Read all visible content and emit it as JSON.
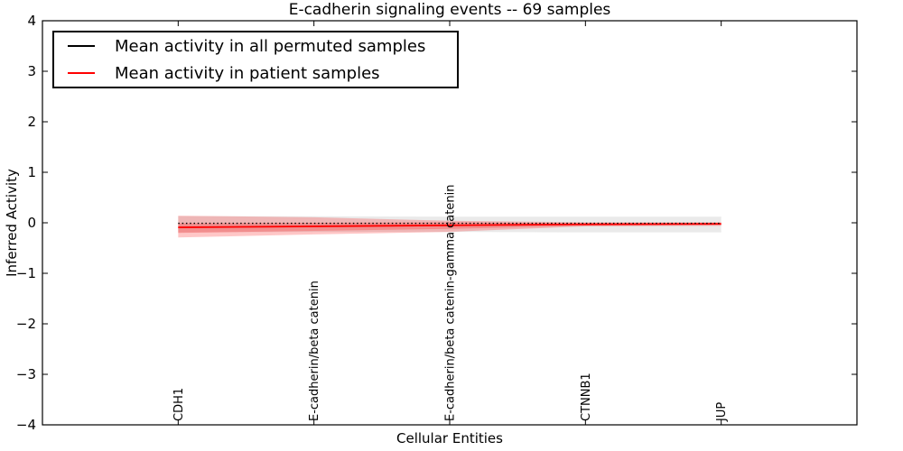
{
  "figure": {
    "title": "E-cadherin signaling events -- 69 samples",
    "xlabel": "Cellular Entities",
    "ylabel": "Inferred Activity"
  },
  "legend": {
    "items": [
      {
        "label": "Mean activity in all permuted samples",
        "color": "#000000"
      },
      {
        "label": "Mean activity in patient samples",
        "color": "#ff0000"
      }
    ]
  },
  "chart_data": {
    "type": "line",
    "title": "E-cadherin signaling events -- 69 samples",
    "xlabel": "Cellular Entities",
    "ylabel": "Inferred Activity",
    "ylim": [
      -4,
      4
    ],
    "yticks": {
      "values": [
        4,
        3,
        2,
        1,
        0,
        -1,
        -2,
        -3,
        -4
      ],
      "labels": [
        "4",
        "3",
        "2",
        "1",
        "0",
        "−1",
        "−2",
        "−3",
        "−4"
      ]
    },
    "categories": [
      "CDH1",
      "E-cadherin/beta catenin",
      "E-cadherin/beta catenin-gamma catenin",
      "CTNNB1",
      "JUP"
    ],
    "grid": false,
    "legend_position": "upper left",
    "series": [
      {
        "name": "Mean activity in all permuted samples",
        "color": "#000000",
        "line_style": "dotted",
        "values": [
          -0.01,
          -0.01,
          -0.01,
          -0.01,
          -0.01
        ],
        "bands": [
          {
            "upper": [
              0.13,
              0.13,
              0.12,
              0.12,
              0.12
            ],
            "lower": [
              -0.19,
              -0.18,
              -0.18,
              -0.19,
              -0.19
            ],
            "fill": "#888888",
            "opacity": 0.18
          }
        ]
      },
      {
        "name": "Mean activity in patient samples",
        "color": "#ff0000",
        "line_style": "solid",
        "values": [
          -0.09,
          -0.07,
          -0.05,
          -0.03,
          -0.02
        ],
        "bands": [
          {
            "upper": [
              0.14,
              0.11,
              0.04,
              0.01,
              0.01
            ],
            "lower": [
              -0.29,
              -0.23,
              -0.18,
              -0.07,
              -0.06
            ],
            "fill": "#ff0000",
            "opacity": 0.22
          },
          {
            "upper": [
              -0.01,
              0.0,
              0.01,
              -0.01,
              -0.01
            ],
            "lower": [
              -0.2,
              -0.16,
              -0.12,
              -0.06,
              -0.05
            ],
            "fill": "#ff0000",
            "opacity": 0.22
          }
        ]
      }
    ]
  }
}
